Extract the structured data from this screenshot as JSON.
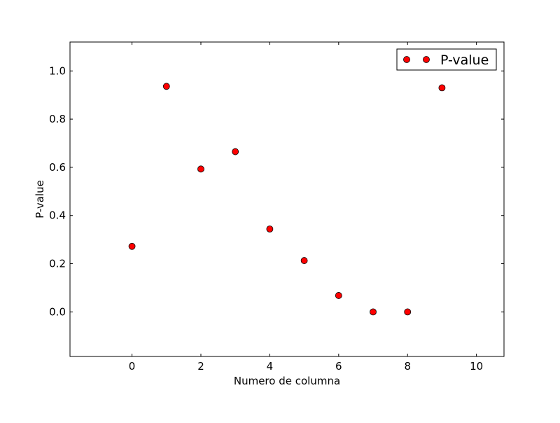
{
  "chart_data": {
    "type": "scatter",
    "title": "",
    "xlabel": "Numero de columna",
    "ylabel": "P-value",
    "xlim": [
      -1.8,
      10.8
    ],
    "ylim": [
      -0.185,
      1.12
    ],
    "xticks": [
      0,
      2,
      4,
      6,
      8,
      10
    ],
    "xtick_labels": [
      "0",
      "2",
      "4",
      "6",
      "8",
      "10"
    ],
    "yticks": [
      0.0,
      0.2,
      0.4,
      0.6,
      0.8,
      1.0
    ],
    "ytick_labels": [
      "0.0",
      "0.2",
      "0.4",
      "0.6",
      "0.8",
      "1.0"
    ],
    "grid": false,
    "legend_position": "top-right",
    "series": [
      {
        "name": "P-value",
        "color": "#ff0000",
        "marker": "circle",
        "x": [
          0,
          1,
          2,
          3,
          4,
          5,
          6,
          7,
          8,
          9
        ],
        "y": [
          0.272,
          0.936,
          0.593,
          0.665,
          0.344,
          0.213,
          0.068,
          0.0,
          0.0,
          0.93
        ]
      }
    ]
  }
}
